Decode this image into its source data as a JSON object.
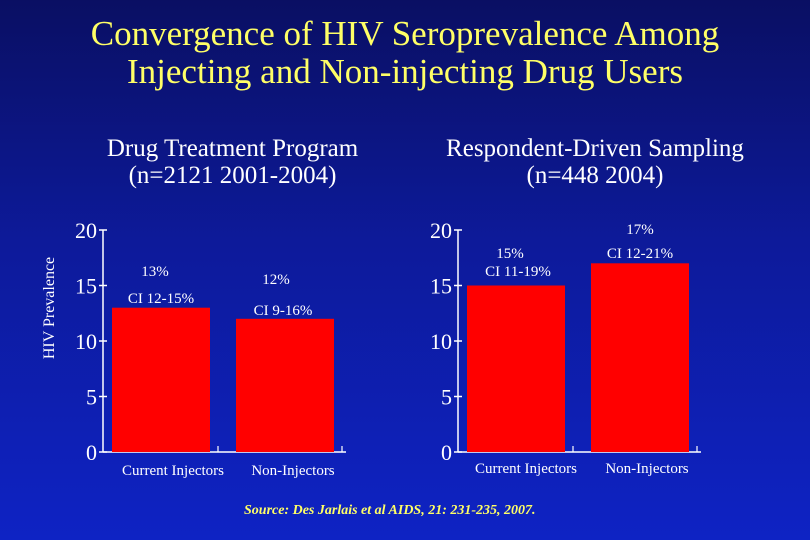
{
  "title_line1": "Convergence of HIV Seroprevalence Among",
  "title_line2": "Injecting and Non-injecting Drug Users",
  "ylabel": "HIV Prevalence",
  "source": "Source: Des Jarlais et al AIDS, 21: 231-235, 2007.",
  "colors": {
    "background_top": "#0a0f63",
    "background_bottom": "#0e23c4",
    "title": "#ffff66",
    "text": "#ffffff",
    "bar": "#ff0000"
  },
  "chart_data": [
    {
      "type": "bar",
      "title_line1": "Drug Treatment Program",
      "title_line2": "(n=2121 2001-2004)",
      "categories": [
        "Current Injectors",
        "Non-Injectors"
      ],
      "values": [
        13,
        12
      ],
      "bar_labels": [
        {
          "value_label": "13%",
          "ci_label": "CI 12-15%"
        },
        {
          "value_label": "12%",
          "ci_label": "CI 9-16%"
        }
      ],
      "ylim": [
        0,
        20
      ],
      "yticks": [
        "0",
        "5",
        "10",
        "15",
        "20"
      ],
      "grid": false
    },
    {
      "type": "bar",
      "title_line1": "Respondent-Driven Sampling",
      "title_line2": "(n=448 2004)",
      "categories": [
        "Current Injectors",
        "Non-Injectors"
      ],
      "values": [
        15,
        17
      ],
      "bar_labels": [
        {
          "value_label": "15%",
          "ci_label": "CI 11-19%"
        },
        {
          "value_label": "17%",
          "ci_label": "CI 12-21%"
        }
      ],
      "ylim": [
        0,
        20
      ],
      "yticks": [
        "0",
        "5",
        "10",
        "15",
        "20"
      ],
      "grid": false
    }
  ]
}
